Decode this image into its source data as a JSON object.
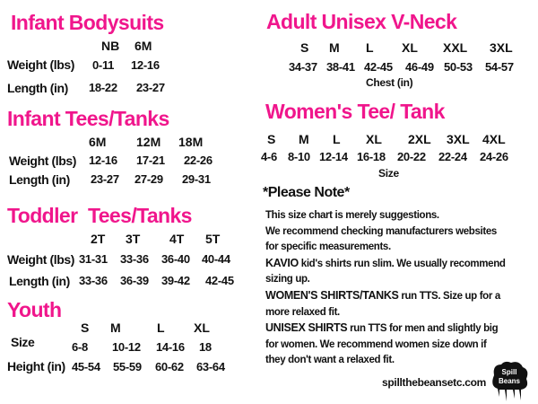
{
  "infant_bodysuits": {
    "title": "Infant Bodysuits",
    "sizes": [
      "NB",
      "6M"
    ],
    "rows": [
      {
        "label": "Weight (lbs)",
        "values": [
          "0-11",
          "12-16"
        ]
      },
      {
        "label": "Length (in)",
        "values": [
          "18-22",
          "23-27"
        ]
      }
    ]
  },
  "infant_tees": {
    "title": "Infant Tees/Tanks",
    "sizes": [
      "6M",
      "12M",
      "18M"
    ],
    "rows": [
      {
        "label": "Weight (lbs)",
        "values": [
          "12-16",
          "17-21",
          "22-26"
        ]
      },
      {
        "label": "Length (in)",
        "values": [
          "23-27",
          "27-29",
          "29-31"
        ]
      }
    ]
  },
  "toddler_tees": {
    "title": "Toddler  Tees/Tanks",
    "sizes": [
      "2T",
      "3T",
      "4T",
      "5T"
    ],
    "rows": [
      {
        "label": "Weight (lbs)",
        "values": [
          "31-31",
          "33-36",
          "36-40",
          "40-44"
        ]
      },
      {
        "label": "Length (in)",
        "values": [
          "33-36",
          "36-39",
          "39-42",
          "42-45"
        ]
      }
    ]
  },
  "youth": {
    "title": "Youth",
    "sizes": [
      "S",
      "M",
      "L",
      "XL"
    ],
    "rows": [
      {
        "label": "Size",
        "values": [
          "6-8",
          "10-12",
          "14-16",
          "18"
        ]
      },
      {
        "label": "Height (in)",
        "values": [
          "45-54",
          "55-59",
          "60-62",
          "63-64"
        ]
      }
    ]
  },
  "adult_unisex": {
    "title": "Adult Unisex V-Neck",
    "sizes": [
      "S",
      "M",
      "L",
      "XL",
      "XXL",
      "3XL"
    ],
    "values": [
      "34-37",
      "38-41",
      "42-45",
      "46-49",
      "50-53",
      "54-57"
    ],
    "caption": "Chest (in)"
  },
  "womens_tee": {
    "title": "Women's Tee/ Tank",
    "sizes": [
      "S",
      "M",
      "L",
      "XL",
      "2XL",
      "3XL",
      "4XL"
    ],
    "values": [
      "4-6",
      "8-10",
      "12-14",
      "16-18",
      "20-22",
      "22-24",
      "24-26"
    ],
    "caption": "Size"
  },
  "note": {
    "heading": "*Please Note*",
    "lines": [
      {
        "text": "This size chart is merely suggestions."
      },
      {
        "text": "We recommend checking manufacturers websites"
      },
      {
        "text": "for specific measurements."
      },
      {
        "bold": "KAVIO",
        "text": " kid's shirts run slim. We usually recommend"
      },
      {
        "text": "sizing up."
      },
      {
        "bold": "WOMEN'S SHIRTS/TANKS",
        "text": " run TTS. Size up for a"
      },
      {
        "text": "more relaxed fit."
      },
      {
        "bold": "UNISEX SHIRTS",
        "text": " run TTS for men and slightly big"
      },
      {
        "text": "for women. We recommend women size down if"
      },
      {
        "text": "they don't want a relaxed fit."
      }
    ]
  },
  "footer": {
    "website": "spillthebeansetc.com",
    "logo_text": "Spill the Beans etc"
  },
  "colors": {
    "accent": "#f0168c",
    "text": "#111111"
  }
}
